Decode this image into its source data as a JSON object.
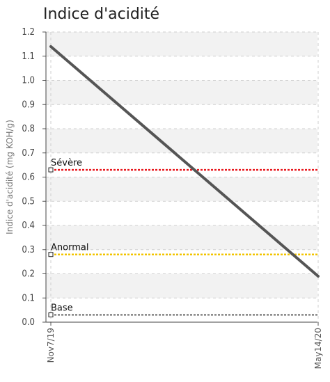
{
  "chart_data": {
    "type": "line",
    "title": "Indice d'acidité",
    "ylabel": "Indice d'acidité (mg KOH/g)",
    "xlabel": "",
    "x_ticks": [
      "Nov7/19",
      "May14/20"
    ],
    "ylim": [
      0,
      1.2
    ],
    "y_ticks": [
      "0.0",
      "0.1",
      "0.2",
      "0.3",
      "0.4",
      "0.5",
      "0.6",
      "0.7",
      "0.8",
      "0.9",
      "1.0",
      "1.1",
      "1.2"
    ],
    "grid": true,
    "series": [
      {
        "x": [
          "Nov7/19",
          "May14/20"
        ],
        "values": [
          1.14,
          0.19
        ],
        "color": "#555555"
      }
    ],
    "thresholds": [
      {
        "label": "Sévère",
        "value": 0.63,
        "color": "#e8191f"
      },
      {
        "label": "Anormal",
        "value": 0.28,
        "color": "#f2c400"
      },
      {
        "label": "Base",
        "value": 0.03,
        "color": "#333333"
      }
    ]
  }
}
